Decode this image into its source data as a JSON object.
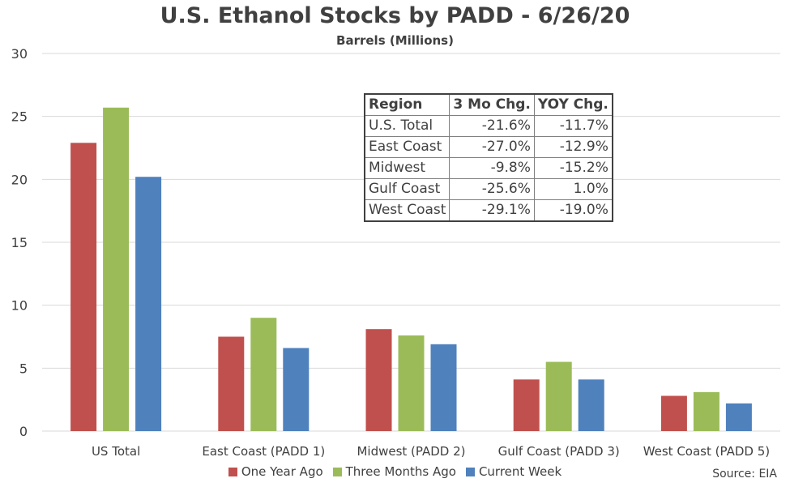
{
  "chart_data": {
    "type": "bar",
    "title": "U.S. Ethanol Stocks by PADD - 6/26/20",
    "subtitle": "Barrels (Millions)",
    "categories": [
      "US Total",
      "East Coast (PADD 1)",
      "Midwest (PADD 2)",
      "Gulf Coast (PADD 3)",
      "West Coast (PADD 5)"
    ],
    "series": [
      {
        "name": "One Year Ago",
        "color": "#C0504D",
        "values": [
          22.9,
          7.5,
          8.1,
          4.1,
          2.8
        ]
      },
      {
        "name": "Three Months Ago",
        "color": "#9BBB59",
        "values": [
          25.7,
          9.0,
          7.6,
          5.5,
          3.1
        ]
      },
      {
        "name": "Current Week",
        "color": "#4F81BD",
        "values": [
          20.2,
          6.6,
          6.9,
          4.1,
          2.2
        ]
      }
    ],
    "ylim": [
      0,
      30
    ],
    "yticks": [
      0,
      5,
      10,
      15,
      20,
      25,
      30
    ],
    "grid": true,
    "legend_position": "bottom",
    "source": "Source: EIA"
  },
  "table": {
    "headers": [
      "Region",
      "3 Mo Chg.",
      "YOY Chg."
    ],
    "rows": [
      [
        "U.S. Total",
        "-21.6%",
        "-11.7%"
      ],
      [
        "East Coast",
        "-27.0%",
        "-12.9%"
      ],
      [
        "Midwest",
        "-9.8%",
        "-15.2%"
      ],
      [
        "Gulf Coast",
        "-25.6%",
        "1.0%"
      ],
      [
        "West Coast",
        "-29.1%",
        "-19.0%"
      ]
    ]
  }
}
